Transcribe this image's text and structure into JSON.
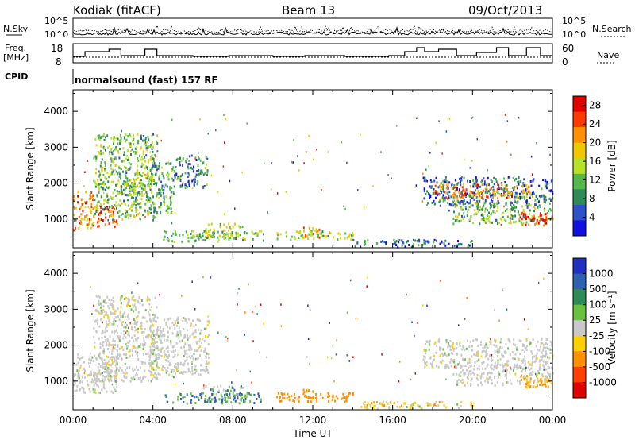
{
  "header": {
    "station": "Kodiak (fitACF)",
    "beam": "Beam 13",
    "date": "09/Oct/2013"
  },
  "strip_labels": {
    "nsky": "N.Sky",
    "nsky_top": "10^5",
    "nsky_bottom": "10^0",
    "freq": "Freq.",
    "freq_unit": "[MHz]",
    "freq_top": "18",
    "freq_bottom": "8",
    "nsearch": "N.Search",
    "nsearch_top": "10^5",
    "nsearch_bottom": "10^0",
    "nave": "Nave",
    "nave_top": "60",
    "nave_bottom": "0",
    "cpid": "CPID",
    "cpid_value": "normalsound (fast) 157 RF"
  },
  "colors": {
    "power_scale": [
      "#1010e0",
      "#3050c8",
      "#2e8b57",
      "#55b84a",
      "#b8e22a",
      "#f0c800",
      "#ff9000",
      "#ff3a00",
      "#e00000"
    ],
    "velocity_scale": [
      "#2030c0",
      "#3060b0",
      "#2e8b57",
      "#6cc040",
      "#c8c8c8",
      "#ffd000",
      "#ff9000",
      "#ff4000",
      "#e00000"
    ],
    "ground_scatter": "#c8c8c8"
  },
  "chart_data": [
    {
      "type": "heatmap",
      "name": "power",
      "xlabel": "Time UT",
      "ylabel": "Slant Range [km]",
      "xlim": [
        0,
        24
      ],
      "ylim": [
        200,
        4600
      ],
      "yticks": [
        "1000",
        "2000",
        "3000",
        "4000"
      ],
      "xticks": [
        "00:00",
        "04:00",
        "08:00",
        "12:00",
        "16:00",
        "20:00",
        "00:00"
      ],
      "colorbar": {
        "label": "Power [dB]",
        "ticks": [
          "4",
          "8",
          "12",
          "16",
          "20",
          "24",
          "28"
        ],
        "range": [
          0,
          30
        ]
      },
      "regions": [
        {
          "t0": 0.0,
          "t1": 1.0,
          "r0": 700,
          "r1": 1800,
          "value": 22
        },
        {
          "t0": 1.0,
          "t1": 2.2,
          "r0": 800,
          "r1": 1400,
          "value": 26
        },
        {
          "t0": 1.0,
          "t1": 4.2,
          "r0": 1000,
          "r1": 3400,
          "value": 12
        },
        {
          "t0": 2.5,
          "t1": 4.0,
          "r0": 1600,
          "r1": 2300,
          "value": 14
        },
        {
          "t0": 3.8,
          "t1": 5.0,
          "r0": 1200,
          "r1": 2600,
          "value": 10
        },
        {
          "t0": 5.0,
          "t1": 6.8,
          "r0": 1900,
          "r1": 2800,
          "value": 8
        },
        {
          "t0": 4.5,
          "t1": 9.5,
          "r0": 400,
          "r1": 700,
          "value": 12
        },
        {
          "t0": 6.5,
          "t1": 8.5,
          "r0": 500,
          "r1": 900,
          "value": 14
        },
        {
          "t0": 10.0,
          "t1": 14.0,
          "r0": 450,
          "r1": 700,
          "value": 15
        },
        {
          "t0": 11.5,
          "t1": 12.3,
          "r0": 500,
          "r1": 800,
          "value": 20
        },
        {
          "t0": 14.0,
          "t1": 20.0,
          "r0": 250,
          "r1": 450,
          "value": 6
        },
        {
          "t0": 17.5,
          "t1": 24.0,
          "r0": 1400,
          "r1": 2200,
          "value": 6
        },
        {
          "t0": 19.0,
          "t1": 24.0,
          "r0": 900,
          "r1": 1500,
          "value": 12
        },
        {
          "t0": 22.3,
          "t1": 24.0,
          "r0": 850,
          "r1": 1200,
          "value": 27
        },
        {
          "t0": 18.0,
          "t1": 23.0,
          "r0": 1600,
          "r1": 2000,
          "value": 22
        }
      ]
    },
    {
      "type": "heatmap",
      "name": "velocity",
      "xlabel": "Time UT",
      "ylabel": "Slant Range [km]",
      "xlim": [
        0,
        24
      ],
      "ylim": [
        200,
        4600
      ],
      "yticks": [
        "1000",
        "2000",
        "3000",
        "4000"
      ],
      "xticks": [
        "00:00",
        "04:00",
        "08:00",
        "12:00",
        "16:00",
        "20:00",
        "00:00"
      ],
      "colorbar": {
        "label": "Velocity [m s⁻¹]",
        "ticks": [
          "1000",
          "500",
          "100",
          "25",
          "-25",
          "-100",
          "-500",
          "-1000"
        ]
      },
      "regions": [
        {
          "t0": 0.0,
          "t1": 2.2,
          "r0": 700,
          "r1": 1800,
          "value": 0
        },
        {
          "t0": 1.0,
          "t1": 4.2,
          "r0": 1000,
          "r1": 3400,
          "value": 0
        },
        {
          "t0": 3.8,
          "t1": 6.8,
          "r0": 1200,
          "r1": 2800,
          "value": 0
        },
        {
          "t0": 4.5,
          "t1": 9.5,
          "r0": 400,
          "r1": 700,
          "value": 120
        },
        {
          "t0": 6.5,
          "t1": 8.5,
          "r0": 500,
          "r1": 900,
          "value": 80
        },
        {
          "t0": 10.0,
          "t1": 14.0,
          "r0": 450,
          "r1": 700,
          "value": -200
        },
        {
          "t0": 11.5,
          "t1": 12.3,
          "r0": 500,
          "r1": 800,
          "value": -400
        },
        {
          "t0": 14.0,
          "t1": 20.0,
          "r0": 250,
          "r1": 450,
          "value": -50
        },
        {
          "t0": 17.5,
          "t1": 24.0,
          "r0": 1400,
          "r1": 2200,
          "value": 0
        },
        {
          "t0": 19.0,
          "t1": 24.0,
          "r0": 900,
          "r1": 1500,
          "value": 0
        },
        {
          "t0": 22.3,
          "t1": 24.0,
          "r0": 850,
          "r1": 1200,
          "value": -150
        }
      ]
    }
  ]
}
